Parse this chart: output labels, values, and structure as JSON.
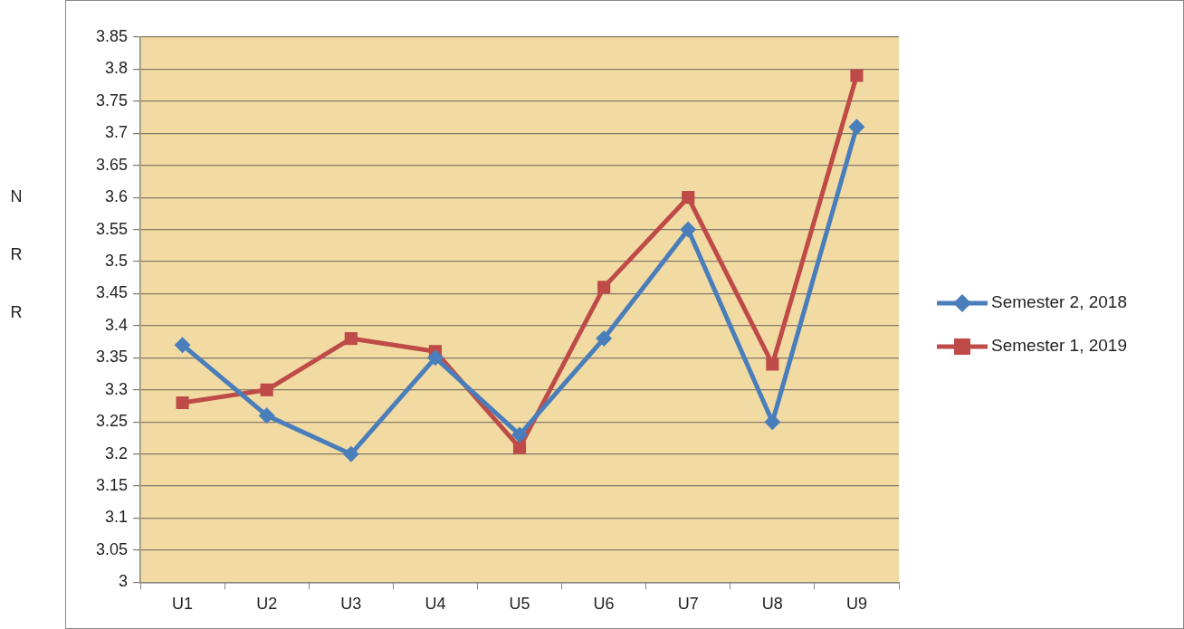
{
  "chart_data": {
    "type": "line",
    "ylabel": "NRR",
    "categories": [
      "U1",
      "U2",
      "U3",
      "U4",
      "U5",
      "U6",
      "U7",
      "U8",
      "U9"
    ],
    "series": [
      {
        "name": "Semester 2, 2018",
        "color": "#4a7ebb",
        "marker": "diamond",
        "values": [
          3.37,
          3.26,
          3.2,
          3.35,
          3.23,
          3.38,
          3.55,
          3.25,
          3.71
        ]
      },
      {
        "name": "Semester 1, 2019",
        "color": "#be4b48",
        "marker": "square",
        "values": [
          3.28,
          3.3,
          3.38,
          3.36,
          3.21,
          3.46,
          3.6,
          3.34,
          3.79
        ]
      }
    ],
    "ylim": [
      3,
      3.85
    ],
    "yticks": [
      3,
      3.05,
      3.1,
      3.15,
      3.2,
      3.25,
      3.3,
      3.35,
      3.4,
      3.45,
      3.5,
      3.55,
      3.6,
      3.65,
      3.7,
      3.75,
      3.8,
      3.85
    ],
    "grid": "y",
    "legend": "right",
    "line_style": "solid"
  }
}
